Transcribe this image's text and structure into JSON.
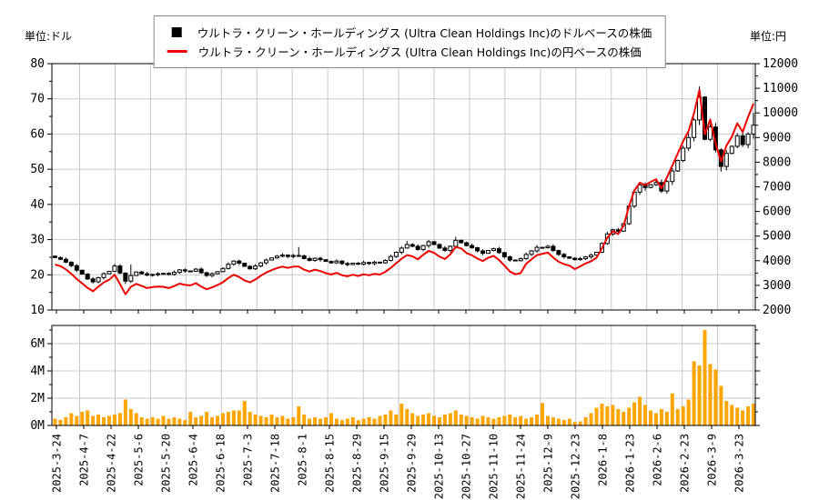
{
  "units": {
    "left": "単位:ドル",
    "right": "単位:円"
  },
  "legend": {
    "items": [
      {
        "marker": "square",
        "color": "#000000",
        "label": "ウルトラ・クリーン・ホールディングス (Ultra Clean Holdings Inc)のドルベースの株価"
      },
      {
        "marker": "line",
        "color": "#ee0000",
        "label": "ウルトラ・クリーン・ホールディングス (Ultra Clean Holdings Inc)の円ベースの株価"
      }
    ]
  },
  "colors": {
    "candle_up": "#ffffff",
    "candle_down": "#000000",
    "candle_stroke": "#000000",
    "yen_line": "#ee0000",
    "volume_bar": "#ffa500",
    "grid": "#c8c8c8",
    "axis": "#000000",
    "legend_border": "#888888"
  },
  "chart_data": {
    "type": "candlestick+line+volume",
    "title": "",
    "x_labels": [
      "2025-3-24",
      "2025-4-7",
      "2025-4-22",
      "2025-5-6",
      "2025-5-20",
      "2025-6-4",
      "2025-6-18",
      "2025-7-3",
      "2025-7-18",
      "2025-8-1",
      "2025-8-15",
      "2025-8-29",
      "2025-9-15",
      "2025-9-29",
      "2025-10-13",
      "2025-10-27",
      "2025-11-10",
      "2025-11-24",
      "2025-12-9",
      "2025-12-23",
      "2026-1-8",
      "2026-1-23",
      "2026-2-6",
      "2026-2-23",
      "2026-3-9",
      "2026-3-23"
    ],
    "left_axis": {
      "unit": "ドル",
      "range": [
        10,
        80
      ],
      "ticks": [
        10,
        20,
        30,
        40,
        50,
        60,
        70,
        80
      ]
    },
    "right_axis": {
      "unit": "円",
      "range": [
        2000,
        12000
      ],
      "ticks": [
        2000,
        3000,
        4000,
        5000,
        6000,
        7000,
        8000,
        9000,
        10000,
        11000,
        12000
      ]
    },
    "volume_axis": {
      "range_millions": [
        0,
        7.33
      ],
      "ticks": [
        "0M",
        "2M",
        "4M",
        "6M"
      ],
      "tick_values": [
        0,
        2,
        4,
        6
      ]
    },
    "grid": true,
    "legend_position": "top-center",
    "series": [
      {
        "name": "ウルトラ・クリーン・ホールディングス (Ultra Clean Holdings Inc)のドルベースの株価",
        "type": "candlestick",
        "axis": "left",
        "close_usd": [
          24.9,
          24.4,
          23.6,
          22.6,
          21.3,
          20.2,
          18.8,
          18.0,
          19.2,
          20.3,
          21.0,
          22.5,
          20.5,
          18.2,
          19.8,
          20.8,
          20.3,
          19.9,
          20.1,
          20.3,
          20.4,
          20.1,
          20.7,
          21.4,
          21.1,
          21.0,
          21.6,
          20.6,
          19.8,
          20.3,
          20.9,
          21.8,
          23.0,
          23.9,
          23.3,
          22.4,
          21.7,
          22.5,
          23.4,
          24.2,
          24.8,
          25.3,
          25.6,
          25.2,
          25.5,
          25.4,
          24.6,
          24.1,
          24.7,
          24.3,
          23.8,
          23.4,
          23.9,
          23.2,
          22.9,
          23.3,
          23.0,
          23.5,
          23.2,
          23.6,
          23.4,
          24.1,
          25.2,
          26.4,
          27.6,
          28.6,
          28.1,
          27.2,
          28.3,
          29.4,
          28.6,
          27.6,
          26.9,
          28.1,
          29.8,
          29.1,
          28.3,
          27.7,
          26.8,
          26.1,
          26.9,
          27.4,
          26.3,
          25.1,
          24.2,
          24.0,
          24.6,
          25.8,
          26.8,
          27.8,
          27.7,
          28.1,
          26.9,
          25.8,
          25.1,
          24.7,
          24.3,
          24.6,
          25.1,
          25.6,
          26.4,
          28.9,
          31.6,
          32.8,
          32.4,
          34.5,
          39.5,
          43.5,
          45.5,
          44.8,
          45.6,
          46.2,
          43.8,
          46.5,
          49.5,
          52.5,
          56.0,
          59.0,
          64.0,
          70.5,
          58.5,
          62.0,
          55.5,
          50.8,
          54.5,
          56.5,
          59.5,
          57.0,
          60.0,
          62.5
        ],
        "wick_overrides": {
          "7": {
            "low": 17.5
          },
          "11": {
            "high": 23.1
          },
          "13": {
            "low": 17.4
          },
          "14": {
            "high": 22.9
          },
          "45": {
            "high": 27.9
          },
          "65": {
            "high": 29.6
          },
          "74": {
            "high": 30.8
          },
          "89": {
            "high": 28.5
          },
          "119": {
            "high": 73.5
          },
          "123": {
            "low": 49.3
          },
          "129": {
            "high": 66.0
          }
        }
      },
      {
        "name": "ウルトラ・クリーン・ホールディングス (Ultra Clean Holdings Inc)の円ベースの株価",
        "type": "line",
        "axis": "right",
        "color": "#ee0000",
        "close_jpy": [
          3850,
          3780,
          3650,
          3470,
          3260,
          3080,
          2900,
          2760,
          2950,
          3120,
          3230,
          3430,
          3050,
          2640,
          2940,
          3060,
          2980,
          2890,
          2930,
          2950,
          2940,
          2890,
          2970,
          3070,
          3020,
          3000,
          3090,
          2950,
          2840,
          2920,
          3010,
          3130,
          3300,
          3430,
          3340,
          3200,
          3120,
          3240,
          3390,
          3520,
          3620,
          3700,
          3760,
          3710,
          3760,
          3760,
          3640,
          3560,
          3640,
          3580,
          3500,
          3440,
          3510,
          3410,
          3370,
          3430,
          3380,
          3450,
          3410,
          3470,
          3440,
          3550,
          3710,
          3900,
          4080,
          4230,
          4180,
          4060,
          4240,
          4400,
          4320,
          4170,
          4070,
          4260,
          4560,
          4500,
          4310,
          4220,
          4090,
          3990,
          4120,
          4200,
          4030,
          3800,
          3560,
          3450,
          3500,
          3870,
          4060,
          4230,
          4280,
          4330,
          4130,
          3960,
          3860,
          3800,
          3660,
          3770,
          3890,
          3980,
          4120,
          4510,
          4940,
          5200,
          5080,
          5420,
          6210,
          6850,
          7170,
          7070,
          7200,
          7310,
          6940,
          7380,
          7860,
          8350,
          8850,
          9260,
          9980,
          10930,
          9130,
          9730,
          8740,
          8030,
          8670,
          9040,
          9580,
          9230,
          9840,
          10380
        ]
      },
      {
        "name": "出来高",
        "type": "bar",
        "axis": "volume",
        "color": "#ffa500",
        "values_millions": [
          0.5,
          0.4,
          0.6,
          0.9,
          0.7,
          1.0,
          1.1,
          0.7,
          0.8,
          0.6,
          0.7,
          0.8,
          0.9,
          1.9,
          1.2,
          0.9,
          0.6,
          0.5,
          0.6,
          0.5,
          0.7,
          0.5,
          0.6,
          0.5,
          0.4,
          1.0,
          0.6,
          0.7,
          1.0,
          0.6,
          0.7,
          0.9,
          1.0,
          1.1,
          1.1,
          1.8,
          1.0,
          0.8,
          0.7,
          0.6,
          0.8,
          0.6,
          0.7,
          0.5,
          0.6,
          1.4,
          0.8,
          0.5,
          0.6,
          0.5,
          0.6,
          0.9,
          0.5,
          0.4,
          0.5,
          0.6,
          0.4,
          0.5,
          0.6,
          0.5,
          0.7,
          0.8,
          1.1,
          0.8,
          1.6,
          1.2,
          0.9,
          0.7,
          0.8,
          0.9,
          0.7,
          0.6,
          0.8,
          0.9,
          1.1,
          0.8,
          0.7,
          0.6,
          0.5,
          0.7,
          0.6,
          0.5,
          0.6,
          0.7,
          0.8,
          0.6,
          0.7,
          0.5,
          0.6,
          0.8,
          1.65,
          0.7,
          0.6,
          0.5,
          0.4,
          0.5,
          0.25,
          0.3,
          0.6,
          0.9,
          1.3,
          1.6,
          1.4,
          1.5,
          1.2,
          1.0,
          1.3,
          1.7,
          2.1,
          1.5,
          1.1,
          0.9,
          1.2,
          1.0,
          2.35,
          1.2,
          1.4,
          1.9,
          4.7,
          4.4,
          7.0,
          4.5,
          4.1,
          2.9,
          1.8,
          1.5,
          1.3,
          1.1,
          1.4,
          1.6
        ]
      }
    ]
  }
}
